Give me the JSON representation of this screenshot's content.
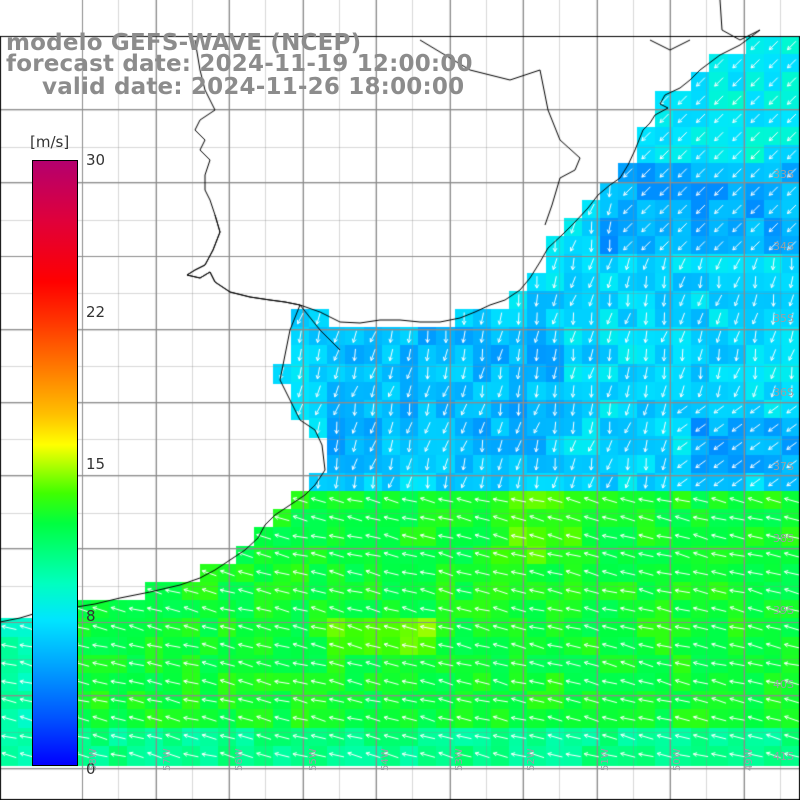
{
  "title": {
    "line1": "modelo GEFS-WAVE (NCEP)",
    "line2": "forecast date: 2024-11-19 12:00:00",
    "line3": "valid date: 2024-11-26 18:00:00"
  },
  "colorbar": {
    "unit": "[m/s]",
    "ticks": [
      "30",
      "22",
      "15",
      "8",
      "0"
    ]
  },
  "colors": {
    "land": "#ffffff",
    "coast": "#000000",
    "grid": "#8c8c8c",
    "arrow": "#ffffff"
  },
  "map_labels": {
    "lat": [
      "33S",
      "34S",
      "35S",
      "36S",
      "37S",
      "38S",
      "39S",
      "40S",
      "41S"
    ],
    "lon": [
      "58W",
      "57W",
      "56W",
      "55W",
      "54W",
      "53W",
      "52W",
      "51W",
      "50W",
      "49W"
    ]
  }
}
